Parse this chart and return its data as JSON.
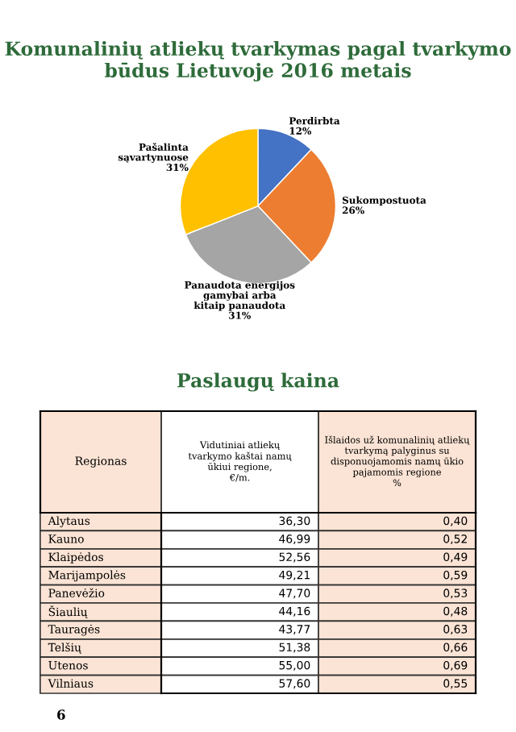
{
  "chart_data": [
    {
      "type": "pie",
      "title": "Komunalinių atliekų tvarkymas pagal tvarkymo\nbūdus Lietuvoje 2016 metais",
      "categories": [
        "Perdirbta",
        "Sukompostuota",
        "Panaudota energijos\ngamybai arba\nkitaip panaudota",
        "Pašalinta\nsąvartynuose"
      ],
      "values": [
        12,
        26,
        31,
        31
      ],
      "colors": [
        "#4472c4",
        "#ed7d31",
        "#a5a5a5",
        "#ffc000"
      ],
      "value_labels": [
        "12%",
        "26%",
        "31%",
        "31%"
      ]
    },
    {
      "type": "other",
      "title": "Paslaugų kaina",
      "ylabel": "Regionas",
      "categories": [
        "Vidutiniai atliekų\ntvarkymo kaštai namų\nūkiui regione,\n€/m.",
        "Išlaidos už komunalinių atliekų\ntvarkymą palyginus su\ndisponuojamomis namų ūkio\npajamomis regione\n%"
      ],
      "y_categories": [
        "Alytaus",
        "Kauno",
        "Klaipėdos",
        "Marijampolės",
        "Panevėžio",
        "Šiaulių",
        "Tauragės",
        "Telšių",
        "Utenos",
        "Vilniaus"
      ],
      "cell_labels": [
        [
          "36,30",
          "0,40"
        ],
        [
          "46,99",
          "0,52"
        ],
        [
          "52,56",
          "0,49"
        ],
        [
          "49,21",
          "0,59"
        ],
        [
          "47,70",
          "0,53"
        ],
        [
          "44,16",
          "0,48"
        ],
        [
          "43,77",
          "0,63"
        ],
        [
          "51,38",
          "0,66"
        ],
        [
          "55,00",
          "0,69"
        ],
        [
          "57,60",
          "0,55"
        ]
      ],
      "colors": [
        "#ffffff",
        "#fbe4d5"
      ],
      "annotations": [
        "6"
      ]
    }
  ]
}
